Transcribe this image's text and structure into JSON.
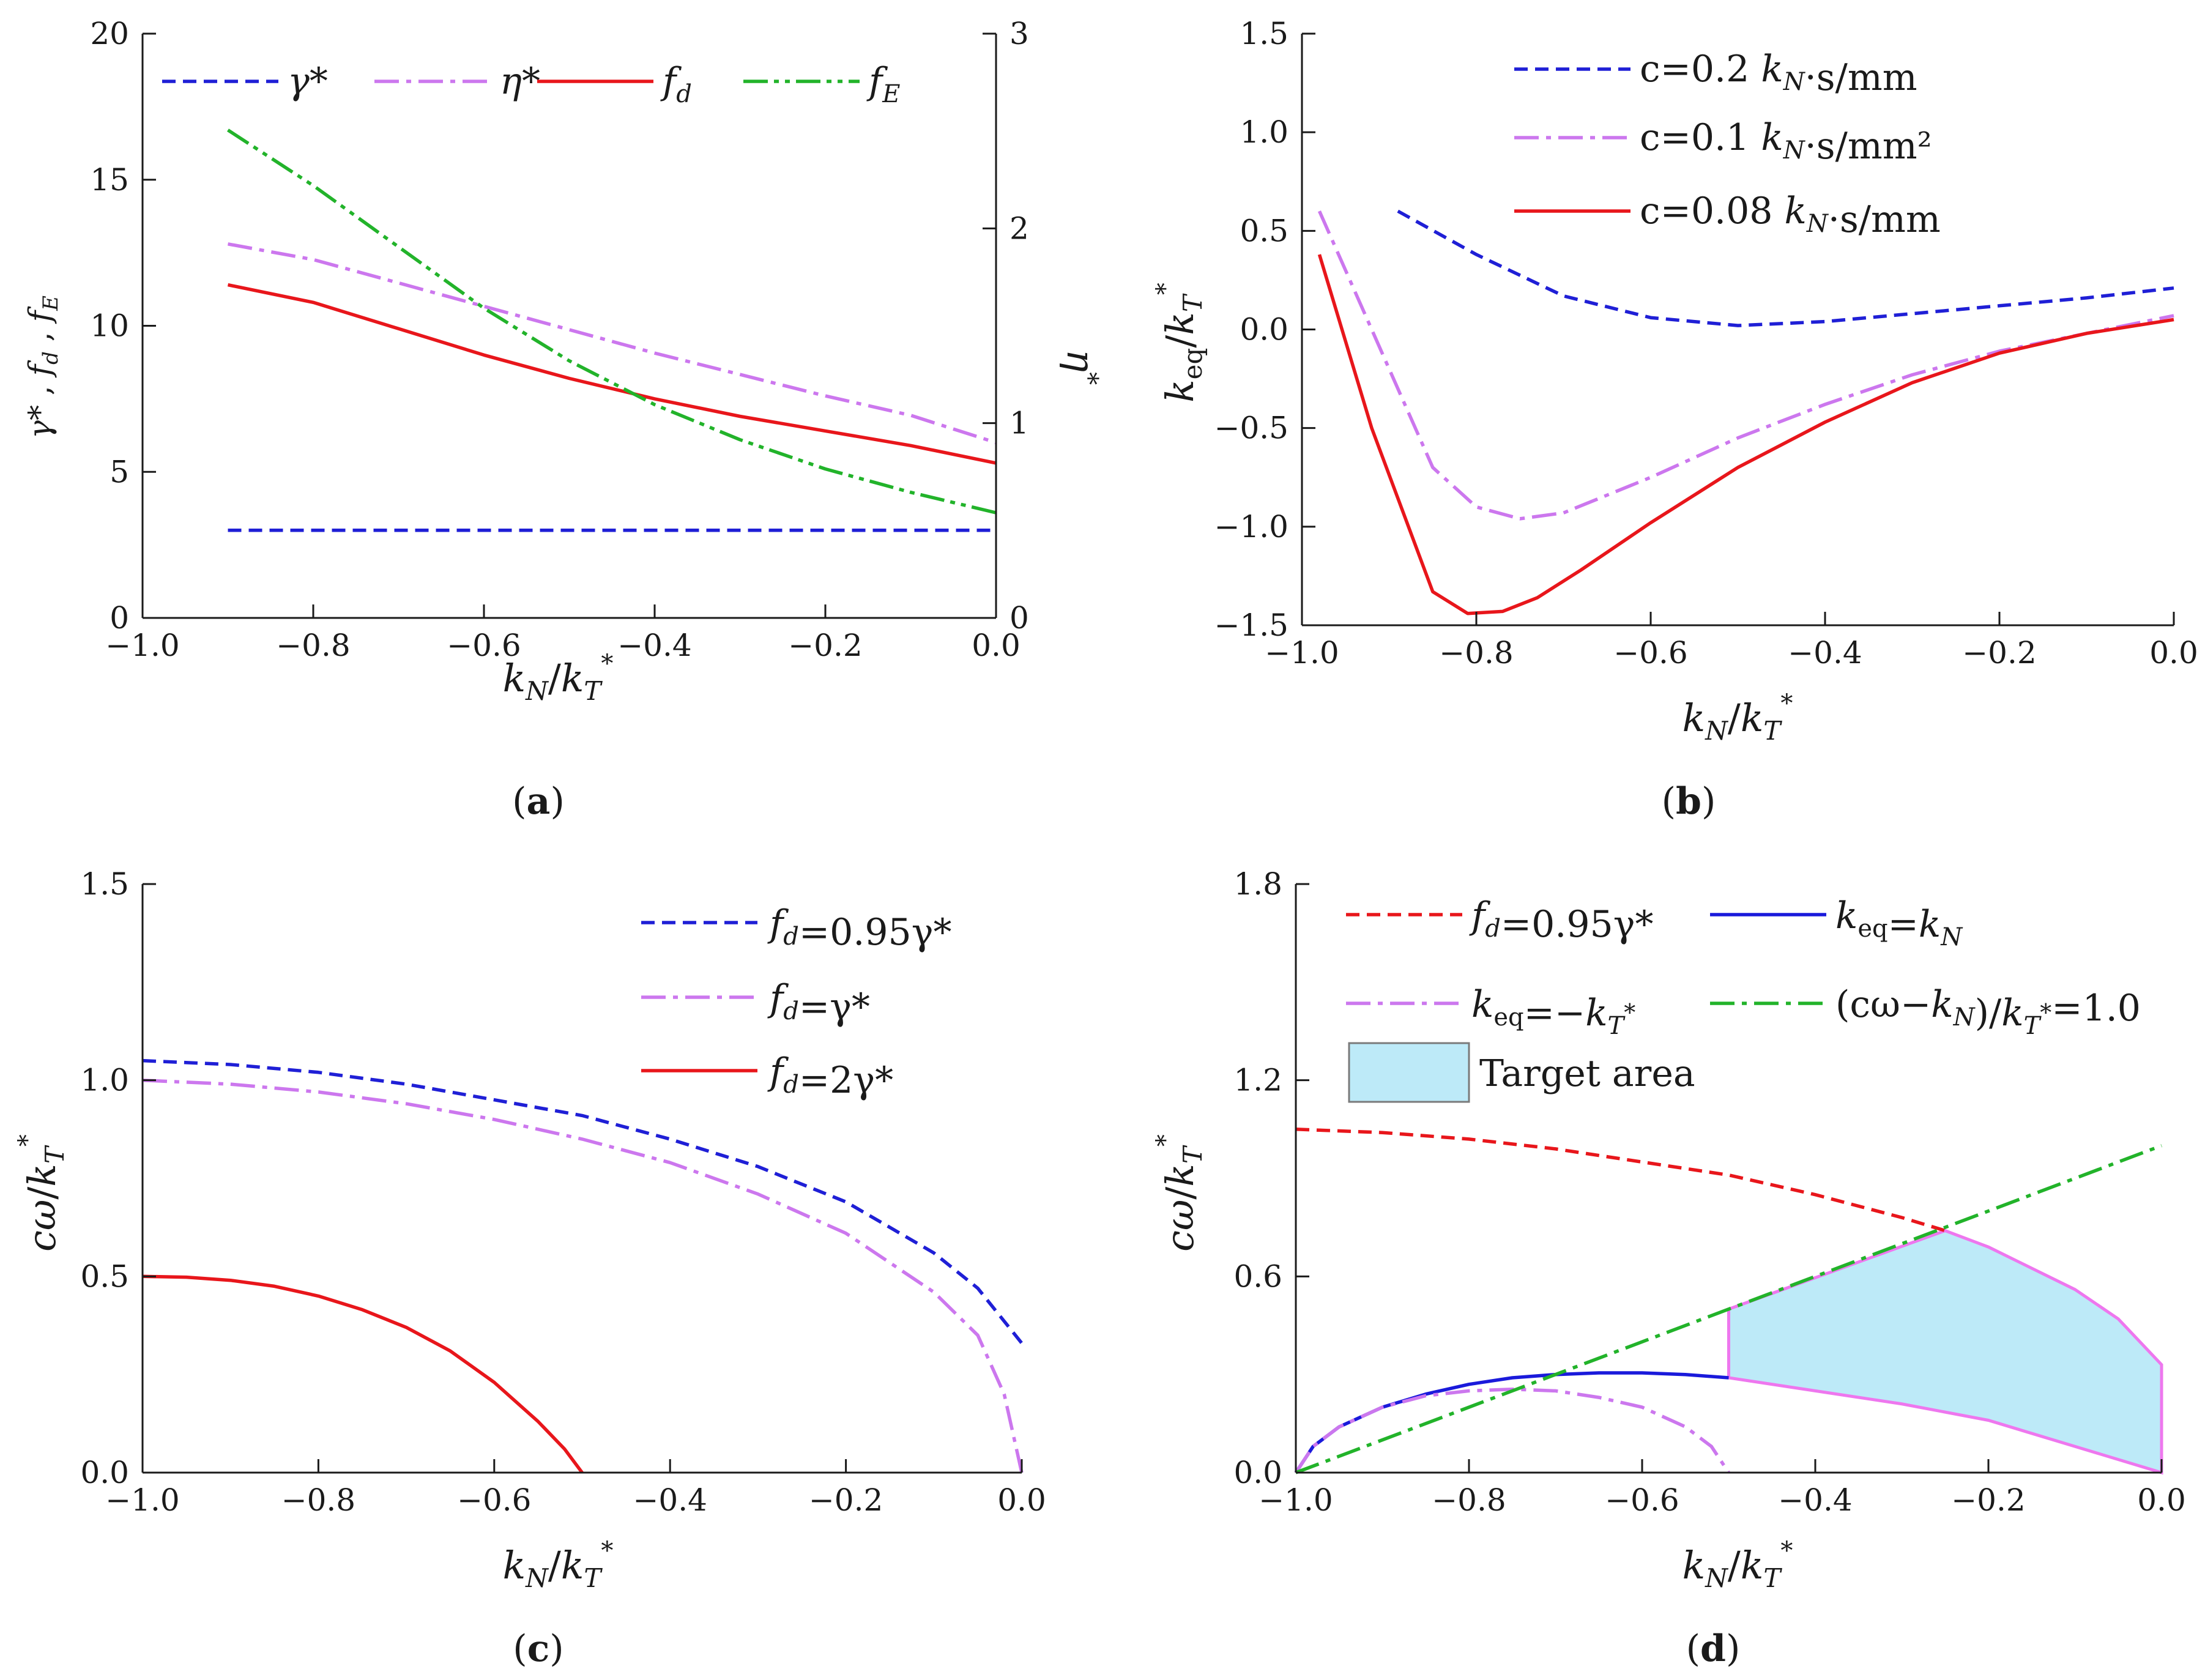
{
  "panels": [
    {
      "id": "a",
      "caption_letter": "a",
      "chart_data": {
        "type": "line",
        "xlabel": "kN/kT*",
        "ylabel": "γ*, fd, fE",
        "y2label": "η*",
        "xlim": [
          -1.0,
          0.0
        ],
        "ylim": [
          0,
          20
        ],
        "y2lim": [
          0,
          3
        ],
        "x_ticks": [
          "−1.0",
          "−0.8",
          "−0.6",
          "−0.4",
          "−0.2",
          "0.0"
        ],
        "y_ticks": [
          "0",
          "5",
          "10",
          "15",
          "20"
        ],
        "y2_ticks": [
          "0",
          "1",
          "2",
          "3"
        ],
        "grid": false,
        "legend_position": "top",
        "series": [
          {
            "name": "γ*",
            "axis": "left",
            "color": "#1f1fd6",
            "dash": "dash",
            "x": [
              -0.9,
              0.0
            ],
            "y": [
              3.0,
              3.0
            ]
          },
          {
            "name": "η*",
            "axis": "right",
            "color": "#cc77ee",
            "dash": "dashdot",
            "x": [
              -0.9,
              -0.8,
              -0.7,
              -0.6,
              -0.5,
              -0.4,
              -0.3,
              -0.2,
              -0.1,
              0.0
            ],
            "y": [
              1.92,
              1.84,
              1.72,
              1.6,
              1.48,
              1.36,
              1.25,
              1.14,
              1.04,
              0.9
            ]
          },
          {
            "name": "fd",
            "axis": "left",
            "color": "#e8161b",
            "dash": "solid",
            "x": [
              -0.9,
              -0.8,
              -0.7,
              -0.6,
              -0.5,
              -0.4,
              -0.3,
              -0.2,
              -0.1,
              0.0
            ],
            "y": [
              11.4,
              10.8,
              9.9,
              9.0,
              8.2,
              7.5,
              6.9,
              6.4,
              5.9,
              5.3
            ]
          },
          {
            "name": "fE",
            "axis": "left",
            "color": "#22b32a",
            "dash": "dashdotdot",
            "x": [
              -0.9,
              -0.8,
              -0.7,
              -0.6,
              -0.5,
              -0.4,
              -0.3,
              -0.2,
              -0.1,
              0.0
            ],
            "y": [
              16.7,
              14.8,
              12.7,
              10.6,
              8.8,
              7.3,
              6.1,
              5.1,
              4.3,
              3.6
            ]
          }
        ]
      }
    },
    {
      "id": "b",
      "caption_letter": "b",
      "chart_data": {
        "type": "line",
        "xlabel": "kN/kT*",
        "ylabel": "keq/kT*",
        "xlim": [
          -1.0,
          0.0
        ],
        "ylim": [
          -1.5,
          1.5
        ],
        "x_ticks": [
          "−1.0",
          "−0.8",
          "−0.6",
          "−0.4",
          "−0.2",
          "0.0"
        ],
        "y_ticks": [
          "−1.5",
          "−1.0",
          "−0.5",
          "0.0",
          "0.5",
          "1.0",
          "1.5"
        ],
        "grid": false,
        "legend_position": "top-right",
        "series": [
          {
            "name": "c=0.2 kN·s/mm",
            "color": "#1f1fd6",
            "dash": "dash",
            "x": [
              -0.89,
              -0.8,
              -0.7,
              -0.6,
              -0.5,
              -0.4,
              -0.3,
              -0.2,
              -0.1,
              0.0
            ],
            "y": [
              0.6,
              0.38,
              0.17,
              0.06,
              0.02,
              0.04,
              0.08,
              0.12,
              0.16,
              0.21
            ]
          },
          {
            "name": "c=0.1 kN·s/mm²",
            "color": "#cc77ee",
            "dash": "dashdot",
            "x": [
              -0.98,
              -0.9,
              -0.85,
              -0.8,
              -0.75,
              -0.7,
              -0.6,
              -0.5,
              -0.4,
              -0.3,
              -0.2,
              -0.1,
              0.0
            ],
            "y": [
              0.6,
              -0.2,
              -0.7,
              -0.9,
              -0.96,
              -0.93,
              -0.75,
              -0.55,
              -0.38,
              -0.23,
              -0.11,
              -0.02,
              0.07
            ]
          },
          {
            "name": "c=0.08 kN·s/mm",
            "color": "#e8161b",
            "dash": "solid",
            "x": [
              -0.98,
              -0.92,
              -0.85,
              -0.81,
              -0.77,
              -0.73,
              -0.68,
              -0.6,
              -0.5,
              -0.4,
              -0.3,
              -0.2,
              -0.1,
              0.0
            ],
            "y": [
              0.38,
              -0.5,
              -1.33,
              -1.44,
              -1.43,
              -1.36,
              -1.22,
              -0.98,
              -0.7,
              -0.47,
              -0.27,
              -0.12,
              -0.02,
              0.05
            ]
          }
        ]
      }
    },
    {
      "id": "c",
      "caption_letter": "c",
      "chart_data": {
        "type": "line",
        "xlabel": "kN/kT*",
        "ylabel": "cω/kT*",
        "xlim": [
          -1.0,
          0.0
        ],
        "ylim": [
          0.0,
          1.5
        ],
        "x_ticks": [
          "−1.0",
          "−0.8",
          "−0.6",
          "−0.4",
          "−0.2",
          "0.0"
        ],
        "y_ticks": [
          "0.0",
          "0.5",
          "1.0",
          "1.5"
        ],
        "grid": false,
        "legend_position": "top-right",
        "series": [
          {
            "name": "fd=0.95γ*",
            "color": "#1f1fd6",
            "dash": "dash",
            "x": [
              -1.0,
              -0.9,
              -0.8,
              -0.7,
              -0.6,
              -0.5,
              -0.4,
              -0.3,
              -0.2,
              -0.1,
              -0.05,
              0.0
            ],
            "y": [
              1.05,
              1.04,
              1.02,
              0.99,
              0.95,
              0.91,
              0.85,
              0.78,
              0.69,
              0.56,
              0.47,
              0.33
            ]
          },
          {
            "name": "fd=γ*",
            "color": "#cc77ee",
            "dash": "dashdot",
            "x": [
              -1.0,
              -0.9,
              -0.8,
              -0.7,
              -0.6,
              -0.5,
              -0.4,
              -0.3,
              -0.2,
              -0.1,
              -0.05,
              -0.02,
              0.0
            ],
            "y": [
              1.0,
              0.99,
              0.97,
              0.94,
              0.9,
              0.85,
              0.79,
              0.71,
              0.61,
              0.46,
              0.35,
              0.2,
              0.0
            ]
          },
          {
            "name": "fd=2γ*",
            "color": "#e8161b",
            "dash": "solid",
            "x": [
              -1.0,
              -0.95,
              -0.9,
              -0.85,
              -0.8,
              -0.75,
              -0.7,
              -0.65,
              -0.6,
              -0.55,
              -0.52,
              -0.5
            ],
            "y": [
              0.5,
              0.498,
              0.49,
              0.475,
              0.45,
              0.415,
              0.37,
              0.31,
              0.23,
              0.13,
              0.06,
              0.0
            ]
          }
        ]
      }
    },
    {
      "id": "d",
      "caption_letter": "d",
      "chart_data": {
        "type": "line",
        "xlabel": "kN/kT*",
        "ylabel": "cω/kT*",
        "xlim": [
          -1.0,
          0.0
        ],
        "ylim": [
          0.0,
          1.8
        ],
        "x_ticks": [
          "−1.0",
          "−0.8",
          "−0.6",
          "−0.4",
          "−0.2",
          "0.0"
        ],
        "y_ticks": [
          "0.0",
          "0.6",
          "1.2",
          "1.8"
        ],
        "grid": false,
        "legend_position": "top",
        "series": [
          {
            "name": "fd=0.95γ*",
            "color": "#e8161b",
            "dash": "dash",
            "x": [
              -1.0,
              -0.9,
              -0.8,
              -0.7,
              -0.6,
              -0.5,
              -0.4,
              -0.3,
              -0.25
            ],
            "y": [
              1.05,
              1.04,
              1.02,
              0.99,
              0.95,
              0.91,
              0.85,
              0.78,
              0.74
            ]
          },
          {
            "name": "keq=kN",
            "color": "#1a1adb",
            "dash": "solid",
            "x": [
              -1.0,
              -0.98,
              -0.95,
              -0.9,
              -0.85,
              -0.8,
              -0.75,
              -0.7,
              -0.65,
              -0.6,
              -0.55,
              -0.5
            ],
            "y": [
              0.0,
              0.08,
              0.14,
              0.2,
              0.24,
              0.27,
              0.29,
              0.3,
              0.305,
              0.305,
              0.3,
              0.29
            ]
          },
          {
            "name": "keq=−kT*",
            "color": "#cc77ee",
            "dash": "dashdot",
            "x": [
              -1.0,
              -0.98,
              -0.95,
              -0.9,
              -0.85,
              -0.8,
              -0.75,
              -0.7,
              -0.65,
              -0.6,
              -0.55,
              -0.52,
              -0.5
            ],
            "y": [
              0.0,
              0.08,
              0.14,
              0.2,
              0.235,
              0.25,
              0.255,
              0.25,
              0.23,
              0.2,
              0.14,
              0.08,
              0.0
            ]
          },
          {
            "name": "(cω−kN)/kT*=1.0",
            "color": "#22b32a",
            "dash": "dashdot",
            "x": [
              -1.0,
              0.0
            ],
            "y": [
              0.0,
              1.0
            ]
          }
        ],
        "area": {
          "name": "Target area",
          "fill": "#bdeaf8",
          "edge": "#ee77ee",
          "x": [
            -0.5,
            -0.5,
            -0.25,
            -0.2,
            -0.1,
            -0.05,
            0.0,
            0.0,
            -0.1,
            -0.2,
            -0.3,
            -0.4,
            -0.5
          ],
          "y": [
            0.29,
            0.5,
            0.74,
            0.69,
            0.56,
            0.47,
            0.33,
            0.0,
            0.08,
            0.16,
            0.21,
            0.25,
            0.29
          ]
        }
      }
    }
  ]
}
